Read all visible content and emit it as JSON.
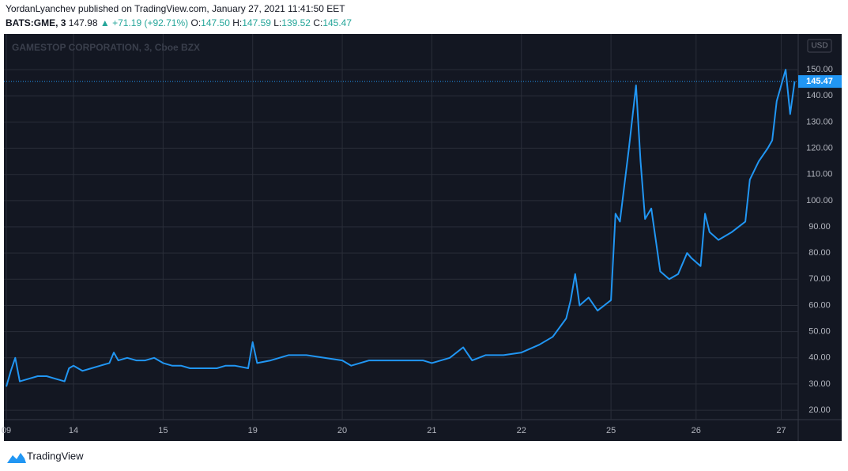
{
  "header": {
    "publisher": "YordanLyanchev published on TradingView.com, January 27, 2021 11:41:50 EET",
    "symbol": "BATS:GME, 3",
    "last": "147.98",
    "arrow": "▲",
    "change": "+71.19 (+92.71%)",
    "ohlc": [
      {
        "label": "O:",
        "value": "147.50"
      },
      {
        "label": "H:",
        "value": "147.59"
      },
      {
        "label": "L:",
        "value": "139.52"
      },
      {
        "label": "C:",
        "value": "145.47"
      }
    ]
  },
  "chart_data": {
    "type": "line",
    "watermark": "GAMESTOP CORPORATION, 3, Cboe BZX",
    "currency": "USD",
    "color": "#2196f3",
    "grid": true,
    "last_price": 145.47,
    "x": [
      0.25,
      0.3,
      0.35,
      0.4,
      0.5,
      0.6,
      0.7,
      0.8,
      0.9,
      0.95,
      1.0,
      1.1,
      1.2,
      1.3,
      1.4,
      1.45,
      1.5,
      1.6,
      1.7,
      1.8,
      1.9,
      2.0,
      2.1,
      2.2,
      2.3,
      2.4,
      2.5,
      2.6,
      2.7,
      2.8,
      2.95,
      3.0,
      3.05,
      3.2,
      3.4,
      3.6,
      3.8,
      4.0,
      4.1,
      4.3,
      4.5,
      4.7,
      4.9,
      5.0,
      5.2,
      5.35,
      5.45,
      5.6,
      5.8,
      6.0,
      6.2,
      6.35,
      6.5,
      6.55,
      6.6,
      6.65,
      6.75,
      6.85,
      7.0,
      7.05,
      7.1,
      7.2,
      7.28,
      7.33,
      7.38,
      7.45,
      7.55,
      7.65,
      7.75,
      7.85,
      7.9,
      8.0,
      8.05,
      8.1,
      8.2,
      8.35,
      8.5,
      8.55,
      8.65,
      8.75,
      8.8,
      8.85,
      8.95,
      9.0,
      9.05
    ],
    "values": [
      29,
      35,
      40,
      31,
      32,
      33,
      33,
      32,
      31,
      36,
      37,
      35,
      36,
      37,
      38,
      42,
      39,
      40,
      39,
      39,
      40,
      38,
      37,
      37,
      36,
      36,
      36,
      36,
      37,
      37,
      36,
      46,
      38,
      39,
      41,
      41,
      40,
      39,
      37,
      39,
      39,
      39,
      39,
      38,
      40,
      44,
      39,
      41,
      41,
      42,
      45,
      48,
      55,
      62,
      72,
      60,
      63,
      58,
      62,
      95,
      92,
      120,
      144,
      115,
      93,
      97,
      73,
      70,
      72,
      80,
      78,
      75,
      95,
      88,
      85,
      88,
      92,
      108,
      115,
      120,
      123,
      138,
      150,
      133,
      145.47
    ],
    "xlim": [
      0.25,
      9.09
    ],
    "xticks": [
      {
        "value": 0.25,
        "label": "09"
      },
      {
        "value": 1,
        "label": "14"
      },
      {
        "value": 2,
        "label": "15"
      },
      {
        "value": 3,
        "label": "19"
      },
      {
        "value": 4,
        "label": "20"
      },
      {
        "value": 5,
        "label": "21"
      },
      {
        "value": 6,
        "label": "22"
      },
      {
        "value": 7,
        "label": "25"
      },
      {
        "value": 7.95,
        "label": "26"
      },
      {
        "value": 8.9,
        "label": "27"
      }
    ],
    "ylim": [
      16.4,
      163.6
    ],
    "yticks": [
      {
        "value": 20,
        "label": "20.00"
      },
      {
        "value": 30,
        "label": "30.00"
      },
      {
        "value": 40,
        "label": "40.00"
      },
      {
        "value": 50,
        "label": "50.00"
      },
      {
        "value": 60,
        "label": "60.00"
      },
      {
        "value": 70,
        "label": "70.00"
      },
      {
        "value": 80,
        "label": "80.00"
      },
      {
        "value": 90,
        "label": "90.00"
      },
      {
        "value": 100,
        "label": "100.00"
      },
      {
        "value": 110,
        "label": "110.00"
      },
      {
        "value": 120,
        "label": "120.00"
      },
      {
        "value": 130,
        "label": "130.00"
      },
      {
        "value": 140,
        "label": "140.00"
      },
      {
        "value": 150,
        "label": "150.00"
      }
    ]
  }
}
